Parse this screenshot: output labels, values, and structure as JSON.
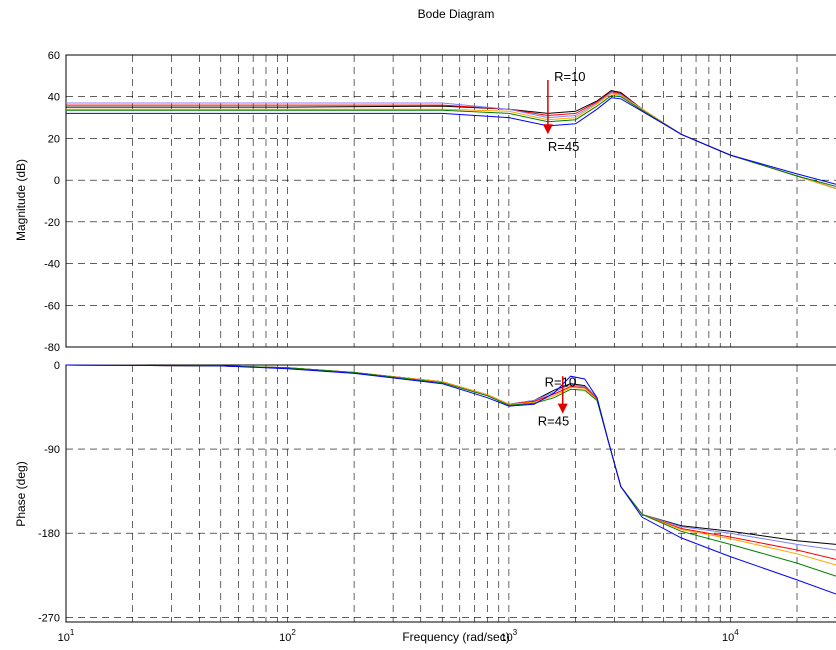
{
  "chart_data": [
    {
      "type": "line",
      "title": "Bode Diagram",
      "xlabel": "",
      "ylabel": "Magnitude (dB)",
      "xscale": "log",
      "xlim": [
        10,
        30000
      ],
      "ylim": [
        -80,
        60
      ],
      "yticks": [
        60,
        40,
        20,
        0,
        -20,
        -40,
        -60,
        -80
      ],
      "grid": true,
      "series": [
        {
          "color": "#000000",
          "x": [
            10,
            100,
            500,
            1000,
            1500,
            2000,
            2500,
            2900,
            3200,
            4000,
            6000,
            10000,
            20000,
            30000
          ],
          "y": [
            35,
            35,
            35.5,
            34,
            32,
            33,
            38,
            43,
            42,
            34,
            22,
            12,
            2,
            -4
          ]
        },
        {
          "color": "#ff0000",
          "x": [
            10,
            100,
            500,
            1000,
            1500,
            2000,
            2500,
            2900,
            3200,
            4000,
            6000,
            10000,
            20000,
            30000
          ],
          "y": [
            36,
            36,
            36,
            34,
            31,
            32,
            37.5,
            42.5,
            41.5,
            34,
            22,
            12,
            2,
            -4
          ]
        },
        {
          "color": "#8080ff",
          "x": [
            10,
            100,
            500,
            1000,
            1500,
            2000,
            2500,
            2900,
            3200,
            4000,
            6000,
            10000,
            20000,
            30000
          ],
          "y": [
            37,
            37,
            37,
            34,
            30,
            31,
            37,
            42,
            41,
            34,
            22,
            12,
            2,
            -4
          ]
        },
        {
          "color": "#ffa500",
          "x": [
            10,
            100,
            500,
            1000,
            1500,
            2000,
            2500,
            2900,
            3200,
            4000,
            6000,
            10000,
            20000,
            30000
          ],
          "y": [
            34,
            34,
            34,
            33,
            29,
            30,
            36.5,
            41.5,
            40.5,
            34,
            22,
            12,
            2,
            -4
          ]
        },
        {
          "color": "#008000",
          "x": [
            10,
            100,
            500,
            1000,
            1500,
            2000,
            2500,
            2900,
            3200,
            4000,
            6000,
            10000,
            20000,
            30000
          ],
          "y": [
            33.5,
            33.5,
            33.5,
            32,
            28,
            29,
            35.5,
            40.5,
            40,
            33.5,
            22,
            12,
            2,
            -3
          ]
        },
        {
          "color": "#0000ff",
          "x": [
            10,
            100,
            500,
            1000,
            1500,
            2000,
            2500,
            2900,
            3200,
            4000,
            6000,
            10000,
            20000,
            30000
          ],
          "y": [
            32,
            32,
            32,
            30,
            26,
            27,
            34,
            39.5,
            39,
            33,
            22,
            12,
            3,
            -2
          ]
        }
      ],
      "annotations": [
        {
          "text": "R=10",
          "x": 1600,
          "y": 47.5
        },
        {
          "text": "R=45",
          "x": 1500,
          "y": 14
        }
      ]
    },
    {
      "type": "line",
      "title": "",
      "xlabel": "Frequency  (rad/sec)",
      "ylabel": "Phase (deg)",
      "xscale": "log",
      "xlim": [
        10,
        30000
      ],
      "ylim": [
        -275,
        0
      ],
      "yticks": [
        0,
        -90,
        -180,
        -270
      ],
      "xticks": [
        10,
        100,
        1000,
        10000
      ],
      "xticklabels": [
        "10",
        "10",
        "10",
        "10"
      ],
      "xtickexponents": [
        "1",
        "2",
        "3",
        "4"
      ],
      "grid": true,
      "series": [
        {
          "color": "#000000",
          "x": [
            10,
            50,
            100,
            200,
            500,
            800,
            1000,
            1300,
            1600,
            1900,
            2200,
            2500,
            2800,
            3200,
            4000,
            6000,
            10000,
            20000,
            30000
          ],
          "y": [
            0,
            -1,
            -3,
            -8,
            -18,
            -32,
            -42,
            -38,
            -27,
            -20,
            -22,
            -35,
            -80,
            -130,
            -160,
            -172,
            -178,
            -188,
            -192
          ]
        },
        {
          "color": "#8080ff",
          "x": [
            10,
            50,
            100,
            200,
            500,
            800,
            1000,
            1300,
            1600,
            1900,
            2200,
            2500,
            2800,
            3200,
            4000,
            6000,
            10000,
            20000,
            30000
          ],
          "y": [
            0,
            -1,
            -3,
            -8,
            -18,
            -32,
            -42,
            -38,
            -29,
            -21,
            -23,
            -35,
            -80,
            -130,
            -160,
            -173,
            -180,
            -192,
            -198
          ]
        },
        {
          "color": "#ff0000",
          "x": [
            10,
            50,
            100,
            200,
            500,
            800,
            1000,
            1300,
            1600,
            1900,
            2200,
            2500,
            2800,
            3200,
            4000,
            6000,
            10000,
            20000,
            30000
          ],
          "y": [
            0,
            -1,
            -3,
            -8,
            -18,
            -32,
            -42,
            -39,
            -31,
            -23,
            -24,
            -36,
            -80,
            -130,
            -160,
            -175,
            -184,
            -198,
            -208
          ]
        },
        {
          "color": "#ffa500",
          "x": [
            10,
            50,
            100,
            200,
            500,
            800,
            1000,
            1300,
            1600,
            1900,
            2200,
            2500,
            2800,
            3200,
            4000,
            6000,
            10000,
            20000,
            30000
          ],
          "y": [
            0,
            -1,
            -3,
            -8,
            -18,
            -32,
            -42,
            -40,
            -33,
            -24,
            -25,
            -37,
            -80,
            -130,
            -160,
            -176,
            -186,
            -202,
            -214
          ]
        },
        {
          "color": "#008000",
          "x": [
            10,
            50,
            100,
            200,
            500,
            800,
            1000,
            1300,
            1600,
            1900,
            2200,
            2500,
            2800,
            3200,
            4000,
            6000,
            10000,
            20000,
            30000
          ],
          "y": [
            0,
            -1,
            -3,
            -8,
            -19,
            -33,
            -43,
            -41,
            -35,
            -26,
            -27,
            -38,
            -80,
            -130,
            -160,
            -178,
            -192,
            -212,
            -226
          ]
        },
        {
          "color": "#0000ff",
          "x": [
            10,
            50,
            100,
            200,
            500,
            800,
            1000,
            1300,
            1600,
            1900,
            2200,
            2500,
            2800,
            3200,
            4000,
            6000,
            10000,
            20000,
            30000
          ],
          "y": [
            0,
            -1,
            -4,
            -9,
            -20,
            -35,
            -44,
            -42,
            -30,
            -12,
            -15,
            -35,
            -80,
            -130,
            -163,
            -185,
            -205,
            -230,
            -245
          ]
        }
      ],
      "annotations": [
        {
          "text": "R=10",
          "x": 1450,
          "y": -23
        },
        {
          "text": "R=45",
          "x": 1350,
          "y": -65
        }
      ]
    }
  ]
}
